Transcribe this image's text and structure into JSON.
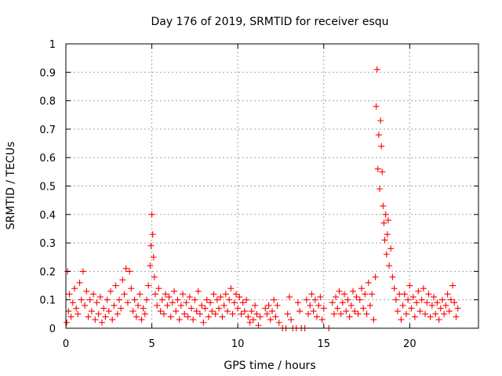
{
  "chart_data": {
    "type": "scatter",
    "title": "Day 176 of 2019, SRMTID for receiver esqu",
    "xlabel": "GPS time / hours",
    "ylabel": "SRMTID / TECUs",
    "xlim": [
      0,
      24
    ],
    "ylim": [
      0,
      1
    ],
    "xticks": [
      0,
      5,
      10,
      15,
      20
    ],
    "xtick_labels": [
      "0",
      "5",
      "10",
      "15",
      "20"
    ],
    "yticks": [
      0,
      0.1,
      0.2,
      0.3,
      0.4,
      0.5,
      0.6,
      0.7,
      0.8,
      0.9,
      1
    ],
    "ytick_labels": [
      "0",
      "0.1",
      "0.2",
      "0.3",
      "0.4",
      "0.5",
      "0.6",
      "0.7",
      "0.8",
      "0.9",
      "1"
    ],
    "grid": true,
    "marker": "+",
    "marker_color": "#ff0000",
    "series": [
      {
        "name": "SRMTID",
        "points": [
          [
            0.05,
            0.02
          ],
          [
            0.1,
            0.2
          ],
          [
            0.15,
            0.06
          ],
          [
            0.2,
            0.12
          ],
          [
            0.3,
            0.04
          ],
          [
            0.4,
            0.09
          ],
          [
            0.5,
            0.14
          ],
          [
            0.6,
            0.07
          ],
          [
            0.7,
            0.05
          ],
          [
            0.8,
            0.16
          ],
          [
            0.9,
            0.1
          ],
          [
            1.0,
            0.2
          ],
          [
            1.1,
            0.08
          ],
          [
            1.2,
            0.13
          ],
          [
            1.3,
            0.04
          ],
          [
            1.4,
            0.1
          ],
          [
            1.5,
            0.06
          ],
          [
            1.6,
            0.12
          ],
          [
            1.7,
            0.03
          ],
          [
            1.8,
            0.09
          ],
          [
            1.9,
            0.05
          ],
          [
            2.0,
            0.11
          ],
          [
            2.1,
            0.02
          ],
          [
            2.2,
            0.07
          ],
          [
            2.3,
            0.04
          ],
          [
            2.4,
            0.1
          ],
          [
            2.5,
            0.06
          ],
          [
            2.6,
            0.13
          ],
          [
            2.7,
            0.03
          ],
          [
            2.8,
            0.08
          ],
          [
            2.9,
            0.15
          ],
          [
            3.0,
            0.05
          ],
          [
            3.1,
            0.1
          ],
          [
            3.2,
            0.07
          ],
          [
            3.3,
            0.17
          ],
          [
            3.4,
            0.12
          ],
          [
            3.5,
            0.21
          ],
          [
            3.6,
            0.09
          ],
          [
            3.7,
            0.2
          ],
          [
            3.8,
            0.14
          ],
          [
            3.9,
            0.06
          ],
          [
            4.0,
            0.1
          ],
          [
            4.1,
            0.04
          ],
          [
            4.2,
            0.08
          ],
          [
            4.3,
            0.12
          ],
          [
            4.4,
            0.03
          ],
          [
            4.5,
            0.07
          ],
          [
            4.6,
            0.05
          ],
          [
            4.7,
            0.1
          ],
          [
            4.8,
            0.15
          ],
          [
            4.9,
            0.22
          ],
          [
            4.95,
            0.29
          ],
          [
            5.0,
            0.4
          ],
          [
            5.05,
            0.33
          ],
          [
            5.1,
            0.25
          ],
          [
            5.15,
            0.18
          ],
          [
            5.2,
            0.12
          ],
          [
            5.3,
            0.08
          ],
          [
            5.4,
            0.14
          ],
          [
            5.5,
            0.06
          ],
          [
            5.6,
            0.1
          ],
          [
            5.7,
            0.05
          ],
          [
            5.8,
            0.12
          ],
          [
            5.9,
            0.08
          ],
          [
            6.0,
            0.11
          ],
          [
            6.1,
            0.04
          ],
          [
            6.2,
            0.09
          ],
          [
            6.3,
            0.13
          ],
          [
            6.4,
            0.06
          ],
          [
            6.5,
            0.1
          ],
          [
            6.6,
            0.03
          ],
          [
            6.7,
            0.08
          ],
          [
            6.8,
            0.12
          ],
          [
            6.9,
            0.05
          ],
          [
            7.0,
            0.09
          ],
          [
            7.1,
            0.04
          ],
          [
            7.2,
            0.11
          ],
          [
            7.3,
            0.07
          ],
          [
            7.4,
            0.03
          ],
          [
            7.5,
            0.1
          ],
          [
            7.6,
            0.06
          ],
          [
            7.7,
            0.13
          ],
          [
            7.8,
            0.05
          ],
          [
            7.9,
            0.08
          ],
          [
            8.0,
            0.02
          ],
          [
            8.1,
            0.07
          ],
          [
            8.2,
            0.1
          ],
          [
            8.3,
            0.04
          ],
          [
            8.4,
            0.09
          ],
          [
            8.5,
            0.06
          ],
          [
            8.6,
            0.12
          ],
          [
            8.7,
            0.05
          ],
          [
            8.8,
            0.1
          ],
          [
            8.9,
            0.07
          ],
          [
            9.0,
            0.11
          ],
          [
            9.1,
            0.04
          ],
          [
            9.2,
            0.08
          ],
          [
            9.3,
            0.12
          ],
          [
            9.4,
            0.06
          ],
          [
            9.5,
            0.1
          ],
          [
            9.6,
            0.14
          ],
          [
            9.7,
            0.05
          ],
          [
            9.8,
            0.09
          ],
          [
            9.9,
            0.12
          ],
          [
            10.0,
            0.07
          ],
          [
            10.1,
            0.11
          ],
          [
            10.2,
            0.05
          ],
          [
            10.3,
            0.09
          ],
          [
            10.4,
            0.06
          ],
          [
            10.5,
            0.1
          ],
          [
            10.6,
            0.04
          ],
          [
            10.7,
            0.02
          ],
          [
            10.8,
            0.06
          ],
          [
            10.9,
            0.03
          ],
          [
            11.0,
            0.08
          ],
          [
            11.1,
            0.05
          ],
          [
            11.2,
            0.01
          ],
          [
            11.3,
            0.04
          ],
          [
            11.6,
            0.07
          ],
          [
            11.7,
            0.05
          ],
          [
            11.8,
            0.08
          ],
          [
            11.9,
            0.03
          ],
          [
            12.0,
            0.06
          ],
          [
            12.1,
            0.1
          ],
          [
            12.2,
            0.04
          ],
          [
            12.3,
            0.08
          ],
          [
            12.4,
            0.02
          ],
          [
            12.6,
            0.0
          ],
          [
            12.8,
            0.0
          ],
          [
            12.9,
            0.05
          ],
          [
            13.0,
            0.11
          ],
          [
            13.1,
            0.03
          ],
          [
            13.2,
            0.0
          ],
          [
            13.4,
            0.0
          ],
          [
            13.5,
            0.09
          ],
          [
            13.6,
            0.06
          ],
          [
            13.7,
            0.0
          ],
          [
            13.9,
            0.0
          ],
          [
            14.0,
            0.1
          ],
          [
            14.1,
            0.05
          ],
          [
            14.2,
            0.08
          ],
          [
            14.3,
            0.12
          ],
          [
            14.4,
            0.06
          ],
          [
            14.5,
            0.1
          ],
          [
            14.6,
            0.04
          ],
          [
            14.7,
            0.08
          ],
          [
            14.8,
            0.11
          ],
          [
            14.9,
            0.03
          ],
          [
            15.0,
            0.07
          ],
          [
            15.3,
            0.0
          ],
          [
            15.5,
            0.09
          ],
          [
            15.6,
            0.05
          ],
          [
            15.7,
            0.11
          ],
          [
            15.8,
            0.07
          ],
          [
            15.9,
            0.13
          ],
          [
            16.0,
            0.05
          ],
          [
            16.1,
            0.09
          ],
          [
            16.2,
            0.12
          ],
          [
            16.3,
            0.06
          ],
          [
            16.4,
            0.1
          ],
          [
            16.5,
            0.04
          ],
          [
            16.6,
            0.08
          ],
          [
            16.7,
            0.13
          ],
          [
            16.8,
            0.06
          ],
          [
            16.9,
            0.11
          ],
          [
            17.0,
            0.05
          ],
          [
            17.1,
            0.1
          ],
          [
            17.2,
            0.14
          ],
          [
            17.3,
            0.07
          ],
          [
            17.4,
            0.12
          ],
          [
            17.5,
            0.05
          ],
          [
            17.6,
            0.16
          ],
          [
            17.7,
            0.08
          ],
          [
            17.8,
            0.12
          ],
          [
            17.9,
            0.03
          ],
          [
            18.0,
            0.18
          ],
          [
            18.05,
            0.78
          ],
          [
            18.1,
            0.91
          ],
          [
            18.15,
            0.56
          ],
          [
            18.2,
            0.68
          ],
          [
            18.25,
            0.49
          ],
          [
            18.3,
            0.73
          ],
          [
            18.35,
            0.64
          ],
          [
            18.4,
            0.55
          ],
          [
            18.45,
            0.43
          ],
          [
            18.5,
            0.37
          ],
          [
            18.55,
            0.31
          ],
          [
            18.6,
            0.4
          ],
          [
            18.65,
            0.26
          ],
          [
            18.7,
            0.33
          ],
          [
            18.75,
            0.38
          ],
          [
            18.8,
            0.22
          ],
          [
            18.9,
            0.28
          ],
          [
            19.0,
            0.18
          ],
          [
            19.1,
            0.14
          ],
          [
            19.2,
            0.1
          ],
          [
            19.3,
            0.06
          ],
          [
            19.4,
            0.12
          ],
          [
            19.5,
            0.03
          ],
          [
            19.6,
            0.08
          ],
          [
            19.7,
            0.12
          ],
          [
            19.8,
            0.05
          ],
          [
            19.9,
            0.1
          ],
          [
            20.0,
            0.15
          ],
          [
            20.1,
            0.07
          ],
          [
            20.2,
            0.11
          ],
          [
            20.3,
            0.04
          ],
          [
            20.4,
            0.09
          ],
          [
            20.5,
            0.13
          ],
          [
            20.6,
            0.06
          ],
          [
            20.7,
            0.1
          ],
          [
            20.8,
            0.14
          ],
          [
            20.9,
            0.05
          ],
          [
            21.0,
            0.09
          ],
          [
            21.1,
            0.12
          ],
          [
            21.2,
            0.04
          ],
          [
            21.3,
            0.08
          ],
          [
            21.4,
            0.11
          ],
          [
            21.5,
            0.05
          ],
          [
            21.6,
            0.09
          ],
          [
            21.7,
            0.03
          ],
          [
            21.8,
            0.07
          ],
          [
            21.9,
            0.1
          ],
          [
            22.0,
            0.05
          ],
          [
            22.1,
            0.08
          ],
          [
            22.2,
            0.12
          ],
          [
            22.3,
            0.06
          ],
          [
            22.4,
            0.1
          ],
          [
            22.5,
            0.15
          ],
          [
            22.6,
            0.09
          ],
          [
            22.7,
            0.04
          ],
          [
            22.8,
            0.07
          ]
        ]
      }
    ]
  }
}
